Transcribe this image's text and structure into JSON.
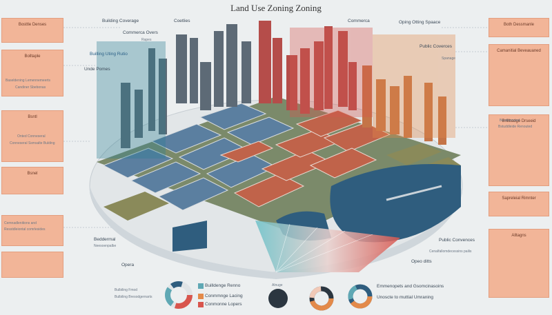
{
  "title": "Land Use Zoning Zoning",
  "left_panels": [
    {
      "label": "Bosttle Denses"
    },
    {
      "label": "Bolltaple"
    },
    {
      "label": "Bsntl"
    },
    {
      "label": "Bsnel"
    },
    {
      "label": ""
    },
    {
      "label": ""
    }
  ],
  "right_panels": [
    {
      "label": "Both Dessmanle"
    },
    {
      "label": "Camanitial Beveauaned"
    },
    {
      "label": "Sapreleial Rimnter"
    },
    {
      "label": "Bnllbadge Drseeid"
    },
    {
      "label": "Alltagns"
    }
  ],
  "labels": {
    "building_coverage": "Building Coverage",
    "coetlies": "Coetlies",
    "commerca": "Commerca",
    "open_space": "Oping Otting Spaace",
    "commerce_overs": "Commerca Overs",
    "rapes": "Rapes",
    "building_ratio": "Builling Uting Rutio",
    "public_overs": "Public Coverces",
    "spanage": "Spanage",
    "under_pomes": "Unde Pomes",
    "residential_left": "Baseldening Lemennemeerts",
    "residential_left_sub": "Candiner Sbebonas",
    "rulel": "Rulel",
    "onted": "Onted Conneseral",
    "onted_sub": "Conneseral Ssmsalte Bulding",
    "residential_top": "Besdoemaed",
    "residential_top_sub": "Bstuddleide Renouted",
    "commercial_left": "Cemnadlenitions and",
    "commercial_left_sub": "Resstdleiontal comrlesides",
    "beddermal": "Beddermal",
    "beddermal_sub": "Neesoenpalbe",
    "public_right": "Public Convences",
    "public_right_sub": "Cenalfallomdecessins pailis",
    "opera": "Opera",
    "operar": "Opeo ditts",
    "bottom_left": "Bulbiling Fmod",
    "bottom_left_sub": "Bulbiling Bresodgernarts"
  },
  "legend": {
    "item1": "Builldenge Renno",
    "item2": "Conmmnge Lacing",
    "item3": "Conmonne Lopers",
    "mid": "Alnuge",
    "right1": "Emmenopets and Gsomcinasoins",
    "right2": "Unoscte to muttial Umraning"
  },
  "colors": {
    "residential": "#c0634a",
    "commercial_blue": "#5b7fa0",
    "water": "#2f5d7e",
    "green": "#8a8a5a",
    "teal": "#5fa8b4",
    "accent_red": "#d8554d",
    "panel": "#f2b598"
  }
}
